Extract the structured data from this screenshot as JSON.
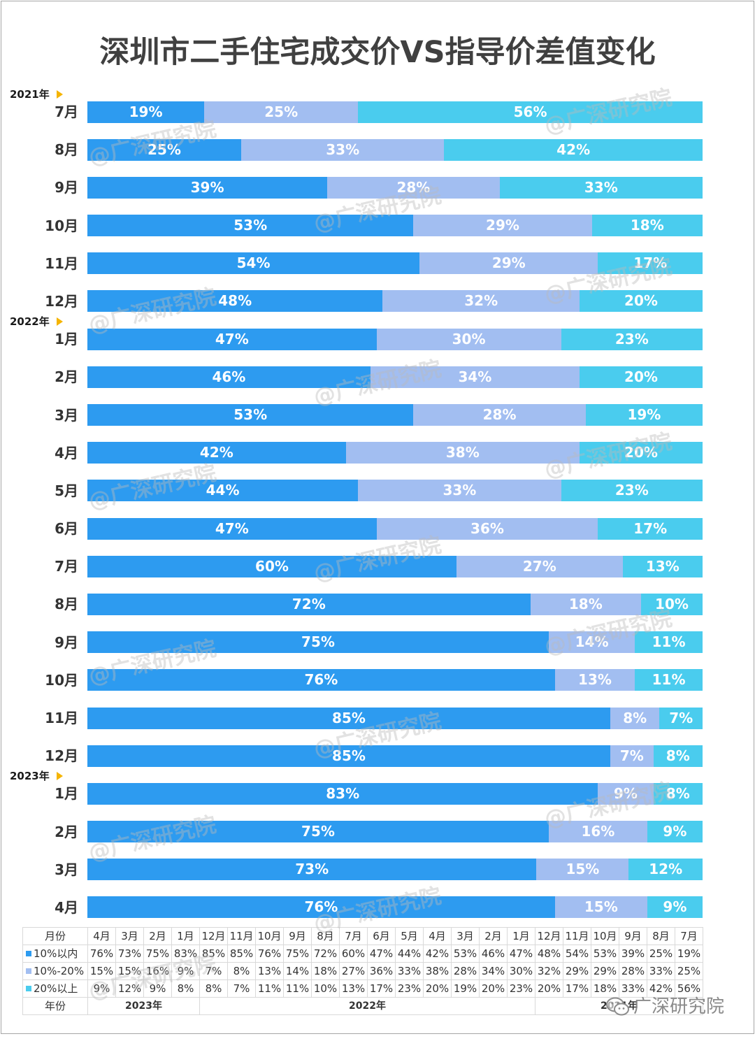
{
  "chart_data": {
    "type": "bar",
    "orientation": "horizontal",
    "stacked": true,
    "title": "深圳市二手住宅成交价VS指导价差值变化",
    "unit": "%",
    "xlim": [
      0,
      100
    ],
    "data_labels": true,
    "legend": "bottom",
    "grid": false,
    "year_marker_color": "#F5B400",
    "year_groups": [
      {
        "year": "2021年",
        "categories": [
          "7月",
          "8月",
          "9月",
          "10月",
          "11月",
          "12月"
        ]
      },
      {
        "year": "2022年",
        "categories": [
          "1月",
          "2月",
          "3月",
          "4月",
          "5月",
          "6月",
          "7月",
          "8月",
          "9月",
          "10月",
          "11月",
          "12月"
        ]
      },
      {
        "year": "2023年",
        "categories": [
          "1月",
          "2月",
          "3月",
          "4月"
        ]
      }
    ],
    "series": [
      {
        "name": "10%以内",
        "color": "#2D9BF0",
        "values": [
          19,
          25,
          39,
          53,
          54,
          48,
          47,
          46,
          53,
          42,
          44,
          47,
          60,
          72,
          75,
          76,
          85,
          85,
          83,
          75,
          73,
          76
        ]
      },
      {
        "name": "10%-20%",
        "color": "#A2BEF1",
        "values": [
          25,
          33,
          28,
          29,
          29,
          32,
          30,
          34,
          28,
          38,
          33,
          36,
          27,
          18,
          14,
          13,
          8,
          7,
          9,
          16,
          15,
          15
        ]
      },
      {
        "name": "20%以上",
        "color": "#4ACCEE",
        "values": [
          56,
          42,
          33,
          18,
          17,
          20,
          23,
          20,
          19,
          20,
          23,
          17,
          13,
          10,
          11,
          11,
          7,
          8,
          8,
          9,
          12,
          9
        ]
      }
    ]
  },
  "table": {
    "header_label": "月份",
    "year_label": "年份",
    "year_columns": [
      {
        "year": "2023年",
        "months": [
          "4月",
          "3月",
          "2月",
          "1月"
        ]
      },
      {
        "year": "2022年",
        "months": [
          "12月",
          "11月",
          "10月",
          "9月",
          "8月",
          "7月",
          "6月",
          "5月",
          "4月",
          "3月",
          "2月",
          "1月"
        ]
      },
      {
        "year": "2021年",
        "months": [
          "12月",
          "11月",
          "10月",
          "9月",
          "8月",
          "7月"
        ]
      }
    ],
    "rows": [
      {
        "label": "10%以内",
        "color": "#2D9BF0",
        "cells": [
          "76%",
          "73%",
          "75%",
          "83%",
          "85%",
          "85%",
          "76%",
          "75%",
          "72%",
          "60%",
          "47%",
          "44%",
          "42%",
          "53%",
          "46%",
          "47%",
          "48%",
          "54%",
          "53%",
          "39%",
          "25%",
          "19%"
        ]
      },
      {
        "label": "10%-20%",
        "color": "#A2BEF1",
        "cells": [
          "15%",
          "15%",
          "16%",
          "9%",
          "7%",
          "8%",
          "13%",
          "14%",
          "18%",
          "27%",
          "36%",
          "33%",
          "38%",
          "28%",
          "34%",
          "30%",
          "32%",
          "29%",
          "29%",
          "28%",
          "33%",
          "25%"
        ]
      },
      {
        "label": "20%以上",
        "color": "#4ACCEE",
        "cells": [
          "9%",
          "12%",
          "9%",
          "8%",
          "8%",
          "7%",
          "11%",
          "11%",
          "10%",
          "13%",
          "17%",
          "23%",
          "20%",
          "19%",
          "20%",
          "23%",
          "20%",
          "17%",
          "18%",
          "33%",
          "42%",
          "56%"
        ]
      }
    ]
  },
  "watermark": {
    "text": "@广深研究院",
    "logo_text": "广深研究院",
    "logo_icon": "wechat-icon"
  }
}
